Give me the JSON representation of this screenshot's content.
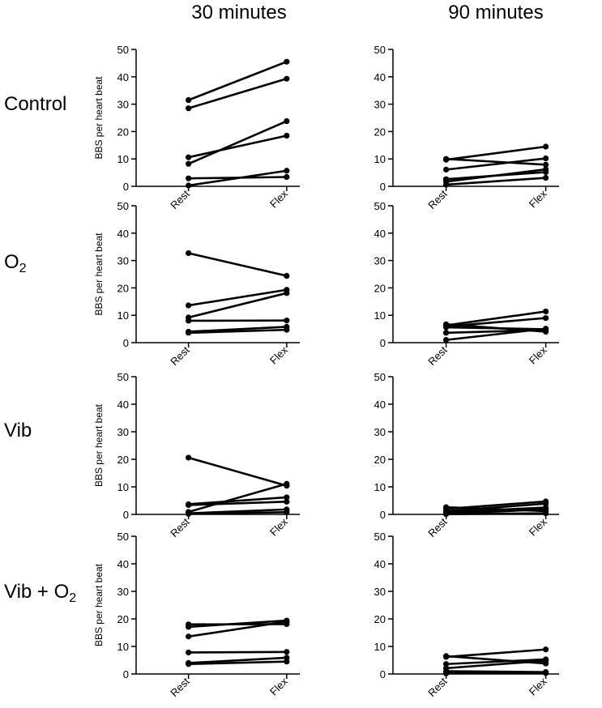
{
  "column_titles": [
    "30 minutes",
    "90 minutes"
  ],
  "row_labels": [
    {
      "text": "Control",
      "sub": ""
    },
    {
      "text": "O",
      "sub": "2"
    },
    {
      "text": "Vib",
      "sub": ""
    },
    {
      "text": "Vib + O",
      "sub": "2"
    }
  ],
  "chart_data": [
    {
      "type": "line",
      "row": "Control",
      "timepoint": "30 minutes",
      "ylabel": "BBS per heart beat",
      "categories": [
        "Rest",
        "Flex"
      ],
      "ylim": [
        0,
        50
      ],
      "yticks": [
        0,
        10,
        20,
        30,
        40,
        50
      ],
      "series": [
        [
          31.5,
          45.5
        ],
        [
          28.5,
          39.3
        ],
        [
          10.6,
          18.5
        ],
        [
          8.2,
          23.8
        ],
        [
          2.9,
          3.4
        ],
        [
          0.3,
          5.7
        ]
      ]
    },
    {
      "type": "line",
      "row": "Control",
      "timepoint": "90 minutes",
      "ylabel": "",
      "categories": [
        "Rest",
        "Flex"
      ],
      "ylim": [
        0,
        50
      ],
      "yticks": [
        0,
        10,
        20,
        30,
        40,
        50
      ],
      "series": [
        [
          10.0,
          7.9
        ],
        [
          9.7,
          14.5
        ],
        [
          6.1,
          10.2
        ],
        [
          2.6,
          5.2
        ],
        [
          1.7,
          6.2
        ],
        [
          0.6,
          3.1
        ]
      ]
    },
    {
      "type": "line",
      "row": "O2",
      "timepoint": "30 minutes",
      "ylabel": "BBS per heart beat",
      "categories": [
        "Rest",
        "Flex"
      ],
      "ylim": [
        0,
        50
      ],
      "yticks": [
        0,
        10,
        20,
        30,
        40,
        50
      ],
      "series": [
        [
          32.7,
          24.4
        ],
        [
          13.6,
          19.3
        ],
        [
          9.2,
          18.1
        ],
        [
          8.0,
          8.1
        ],
        [
          4.0,
          5.8
        ],
        [
          3.6,
          4.7
        ]
      ]
    },
    {
      "type": "line",
      "row": "O2",
      "timepoint": "90 minutes",
      "ylabel": "",
      "categories": [
        "Rest",
        "Flex"
      ],
      "ylim": [
        0,
        50
      ],
      "yticks": [
        0,
        10,
        20,
        30,
        40,
        50
      ],
      "series": [
        [
          6.7,
          4.0
        ],
        [
          6.3,
          11.4
        ],
        [
          5.9,
          9.0
        ],
        [
          5.6,
          4.9
        ],
        [
          3.6,
          4.6
        ],
        [
          1.0,
          5.1
        ]
      ]
    },
    {
      "type": "line",
      "row": "Vib",
      "timepoint": "30 minutes",
      "ylabel": "BBS per heart beat",
      "categories": [
        "Rest",
        "Flex"
      ],
      "ylim": [
        0,
        50
      ],
      "yticks": [
        0,
        10,
        20,
        30,
        40,
        50
      ],
      "series": [
        [
          20.6,
          10.4
        ],
        [
          3.7,
          6.2
        ],
        [
          3.4,
          4.6
        ],
        [
          0.9,
          11.1
        ],
        [
          0.4,
          1.8
        ],
        [
          0.2,
          0.8
        ]
      ]
    },
    {
      "type": "line",
      "row": "Vib",
      "timepoint": "90 minutes",
      "ylabel": "",
      "categories": [
        "Rest",
        "Flex"
      ],
      "ylim": [
        0,
        50
      ],
      "yticks": [
        0,
        10,
        20,
        30,
        40,
        50
      ],
      "series": [
        [
          2.6,
          1.2
        ],
        [
          2.0,
          4.7
        ],
        [
          1.2,
          3.9
        ],
        [
          0.8,
          2.5
        ],
        [
          0.3,
          1.8
        ],
        [
          0.1,
          0.4
        ]
      ]
    },
    {
      "type": "line",
      "row": "Vib + O2",
      "timepoint": "30 minutes",
      "ylabel": "BBS per heart beat",
      "categories": [
        "Rest",
        "Flex"
      ],
      "ylim": [
        0,
        50
      ],
      "yticks": [
        0,
        10,
        20,
        30,
        40,
        50
      ],
      "series": [
        [
          18.0,
          18.1
        ],
        [
          17.1,
          19.4
        ],
        [
          13.6,
          19.0
        ],
        [
          7.8,
          8.0
        ],
        [
          4.0,
          5.9
        ],
        [
          3.6,
          4.5
        ]
      ]
    },
    {
      "type": "line",
      "row": "Vib + O2",
      "timepoint": "90 minutes",
      "ylabel": "",
      "categories": [
        "Rest",
        "Flex"
      ],
      "ylim": [
        0,
        50
      ],
      "yticks": [
        0,
        10,
        20,
        30,
        40,
        50
      ],
      "series": [
        [
          6.5,
          3.8
        ],
        [
          6.2,
          8.9
        ],
        [
          3.6,
          5.3
        ],
        [
          2.1,
          4.8
        ],
        [
          1.0,
          0.7
        ],
        [
          0.2,
          0.3
        ]
      ]
    }
  ]
}
